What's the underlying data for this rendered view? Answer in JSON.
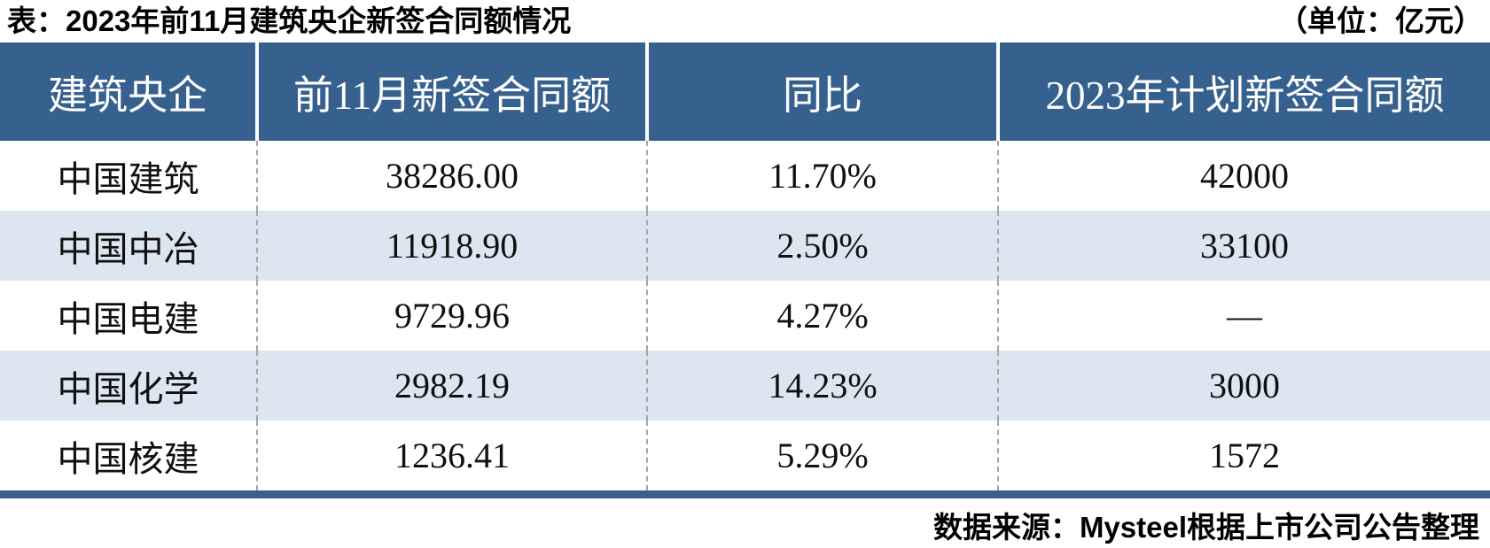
{
  "colors": {
    "header_bg": "#36618F",
    "header_text": "#FFFFFF",
    "stripe_bg": "#DCE6F1",
    "yoy_red": "#C00000",
    "bottom_border": "#36618F",
    "body_text": "#101010"
  },
  "title": {
    "label": "表：2023年前11月建筑央企新签合同额情况",
    "unit": "（单位：亿元）"
  },
  "table": {
    "headers": [
      "建筑央企",
      "前11月新签合同额",
      "同比",
      "2023年计划新签合同额"
    ],
    "rows": [
      {
        "company": "中国建筑",
        "amount": "38286.00",
        "yoy": "11.70%",
        "plan": "42000"
      },
      {
        "company": "中国中冶",
        "amount": "11918.90",
        "yoy": "2.50%",
        "plan": "33100"
      },
      {
        "company": "中国电建",
        "amount": "9729.96",
        "yoy": "4.27%",
        "plan": "—"
      },
      {
        "company": "中国化学",
        "amount": "2982.19",
        "yoy": "14.23%",
        "plan": "3000"
      },
      {
        "company": "中国核建",
        "amount": "1236.41",
        "yoy": "5.29%",
        "plan": "1572"
      }
    ]
  },
  "footer": {
    "source": "数据来源：Mysteel根据上市公司公告整理"
  },
  "chart_data": {
    "type": "table",
    "title": "2023年前11月建筑央企新签合同额情况",
    "unit": "亿元",
    "columns": [
      "建筑央企",
      "前11月新签合同额",
      "同比",
      "2023年计划新签合同额"
    ],
    "rows": [
      [
        "中国建筑",
        38286.0,
        "11.70%",
        42000
      ],
      [
        "中国中冶",
        11918.9,
        "2.50%",
        33100
      ],
      [
        "中国电建",
        9729.96,
        "4.27%",
        null
      ],
      [
        "中国化学",
        2982.19,
        "14.23%",
        3000
      ],
      [
        "中国核建",
        1236.41,
        "5.29%",
        1572
      ]
    ],
    "source": "数据来源：Mysteel根据上市公司公告整理",
    "notes": "同比 column shown in dark red; header row white-on-blue; alternating light-blue row striping; null plan value displayed as em dash"
  }
}
